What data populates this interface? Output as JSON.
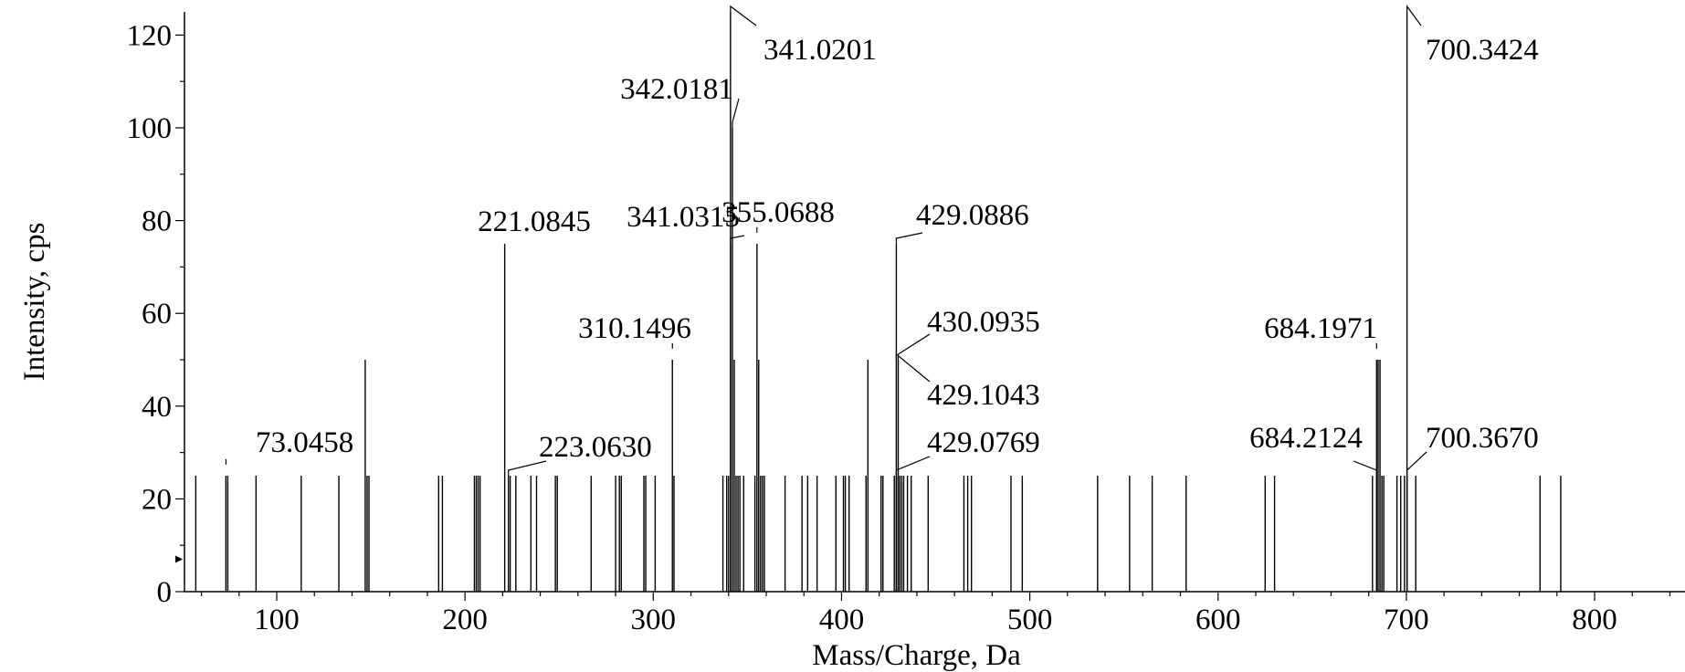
{
  "chart_data": {
    "type": "bar",
    "xlabel": "Mass/Charge, Da",
    "ylabel": "Intensity, cps",
    "xlim": [
      51,
      848
    ],
    "ylim": [
      0,
      125
    ],
    "xticks": [
      100,
      200,
      300,
      400,
      500,
      600,
      700,
      800
    ],
    "yticks": [
      0,
      20,
      40,
      60,
      80,
      100,
      120
    ],
    "grid": false,
    "colors": {
      "line": "#000000",
      "background": "#ffffff"
    },
    "peaks": [
      {
        "x": 57.0,
        "y": 25
      },
      {
        "x": 73.0,
        "y": 25
      },
      {
        "x": 74.0,
        "y": 25
      },
      {
        "x": 89.0,
        "y": 25
      },
      {
        "x": 113.0,
        "y": 25
      },
      {
        "x": 133.0,
        "y": 25
      },
      {
        "x": 147.0,
        "y": 50
      },
      {
        "x": 148.0,
        "y": 25
      },
      {
        "x": 149.0,
        "y": 25
      },
      {
        "x": 186.0,
        "y": 25
      },
      {
        "x": 188.0,
        "y": 25
      },
      {
        "x": 205.0,
        "y": 25
      },
      {
        "x": 206.0,
        "y": 25
      },
      {
        "x": 207.0,
        "y": 25
      },
      {
        "x": 208.0,
        "y": 25
      },
      {
        "x": 221.0845,
        "y": 75
      },
      {
        "x": 223.063,
        "y": 25
      },
      {
        "x": 224.0,
        "y": 25
      },
      {
        "x": 227.0,
        "y": 25
      },
      {
        "x": 235.0,
        "y": 25
      },
      {
        "x": 238.0,
        "y": 25
      },
      {
        "x": 248.0,
        "y": 25
      },
      {
        "x": 249.0,
        "y": 25
      },
      {
        "x": 267.0,
        "y": 25
      },
      {
        "x": 280.0,
        "y": 25
      },
      {
        "x": 282.0,
        "y": 25
      },
      {
        "x": 283.0,
        "y": 25
      },
      {
        "x": 295.0,
        "y": 25
      },
      {
        "x": 296.0,
        "y": 25
      },
      {
        "x": 301.0,
        "y": 25
      },
      {
        "x": 310.1496,
        "y": 50
      },
      {
        "x": 311.0,
        "y": 25
      },
      {
        "x": 337.0,
        "y": 25
      },
      {
        "x": 339.0,
        "y": 25
      },
      {
        "x": 340.0,
        "y": 25
      },
      {
        "x": 341.0201,
        "y": 125
      },
      {
        "x": 341.0315,
        "y": 75
      },
      {
        "x": 342.0181,
        "y": 100
      },
      {
        "x": 343.0,
        "y": 50
      },
      {
        "x": 344.0,
        "y": 25
      },
      {
        "x": 345.0,
        "y": 25
      },
      {
        "x": 346.0,
        "y": 25
      },
      {
        "x": 348.0,
        "y": 25
      },
      {
        "x": 354.0,
        "y": 25
      },
      {
        "x": 355.0688,
        "y": 75
      },
      {
        "x": 356.0,
        "y": 50
      },
      {
        "x": 357.0,
        "y": 25
      },
      {
        "x": 358.0,
        "y": 25
      },
      {
        "x": 359.0,
        "y": 25
      },
      {
        "x": 370.0,
        "y": 25
      },
      {
        "x": 379.0,
        "y": 25
      },
      {
        "x": 382.0,
        "y": 25
      },
      {
        "x": 387.0,
        "y": 25
      },
      {
        "x": 397.0,
        "y": 25
      },
      {
        "x": 401.0,
        "y": 25
      },
      {
        "x": 402.0,
        "y": 25
      },
      {
        "x": 404.0,
        "y": 25
      },
      {
        "x": 413.0,
        "y": 25
      },
      {
        "x": 414.0,
        "y": 50
      },
      {
        "x": 421.0,
        "y": 25
      },
      {
        "x": 422.0,
        "y": 25
      },
      {
        "x": 428.0,
        "y": 25
      },
      {
        "x": 429.0769,
        "y": 25
      },
      {
        "x": 429.0886,
        "y": 75
      },
      {
        "x": 429.1043,
        "y": 25
      },
      {
        "x": 430.0935,
        "y": 50
      },
      {
        "x": 431.0,
        "y": 25
      },
      {
        "x": 432.0,
        "y": 25
      },
      {
        "x": 433.0,
        "y": 25
      },
      {
        "x": 435.0,
        "y": 25
      },
      {
        "x": 437.0,
        "y": 25
      },
      {
        "x": 446.0,
        "y": 25
      },
      {
        "x": 465.0,
        "y": 25
      },
      {
        "x": 467.0,
        "y": 25
      },
      {
        "x": 469.0,
        "y": 25
      },
      {
        "x": 490.0,
        "y": 25
      },
      {
        "x": 496.0,
        "y": 25
      },
      {
        "x": 536.0,
        "y": 25
      },
      {
        "x": 553.0,
        "y": 25
      },
      {
        "x": 565.0,
        "y": 25
      },
      {
        "x": 583.0,
        "y": 25
      },
      {
        "x": 625.0,
        "y": 25
      },
      {
        "x": 630.0,
        "y": 25
      },
      {
        "x": 682.0,
        "y": 25
      },
      {
        "x": 684.1971,
        "y": 50
      },
      {
        "x": 684.2124,
        "y": 25
      },
      {
        "x": 685.0,
        "y": 50
      },
      {
        "x": 686.0,
        "y": 50
      },
      {
        "x": 687.0,
        "y": 25
      },
      {
        "x": 688.0,
        "y": 25
      },
      {
        "x": 695.0,
        "y": 25
      },
      {
        "x": 697.0,
        "y": 25
      },
      {
        "x": 699.0,
        "y": 25
      },
      {
        "x": 700.3424,
        "y": 125
      },
      {
        "x": 700.367,
        "y": 25
      },
      {
        "x": 705.0,
        "y": 25
      },
      {
        "x": 771.0,
        "y": 25
      },
      {
        "x": 782.0,
        "y": 25
      }
    ],
    "annotations": [
      {
        "text": "73.0458",
        "x": 73.0458,
        "y": 27
      },
      {
        "text": "221.0845",
        "x": 221.0845,
        "y": 75
      },
      {
        "text": "223.0630",
        "x": 223.063,
        "y": 25
      },
      {
        "text": "310.1496",
        "x": 310.1496,
        "y": 52
      },
      {
        "text": "341.0315",
        "x": 341.0315,
        "y": 75
      },
      {
        "text": "342.0181",
        "x": 342.0181,
        "y": 100
      },
      {
        "text": "341.0201",
        "x": 341.0201,
        "y": 125
      },
      {
        "text": "355.0688",
        "x": 355.0688,
        "y": 77
      },
      {
        "text": "429.0886",
        "x": 429.0886,
        "y": 75
      },
      {
        "text": "430.0935",
        "x": 430.0935,
        "y": 50
      },
      {
        "text": "429.1043",
        "x": 429.1043,
        "y": 50
      },
      {
        "text": "429.0769",
        "x": 429.0769,
        "y": 25
      },
      {
        "text": "684.1971",
        "x": 684.1971,
        "y": 52
      },
      {
        "text": "684.2124",
        "x": 684.2124,
        "y": 25
      },
      {
        "text": "700.3670",
        "x": 700.367,
        "y": 25
      },
      {
        "text": "700.3424",
        "x": 700.3424,
        "y": 125
      }
    ]
  }
}
